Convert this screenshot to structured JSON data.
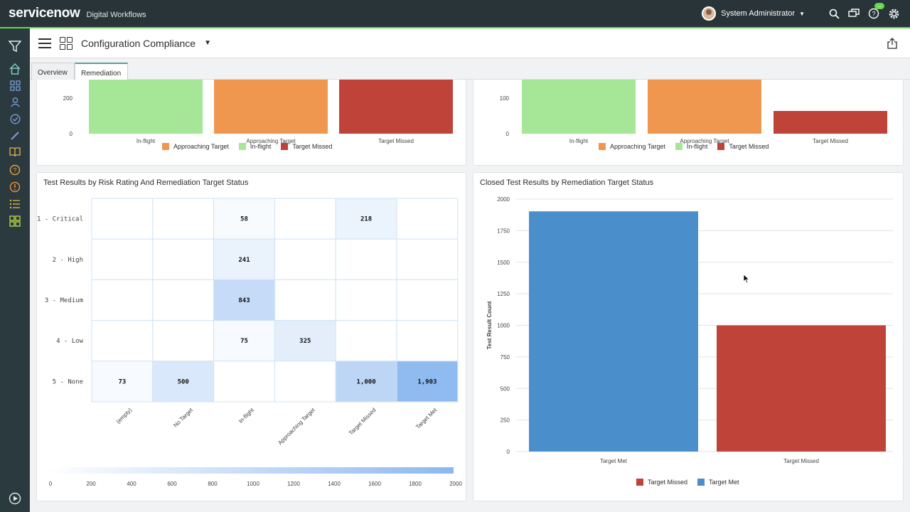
{
  "app": {
    "logo": "servicenow",
    "subtitle": "Digital Workflows",
    "user": "System Administrator",
    "badge": "..."
  },
  "header": {
    "title": "Configuration Compliance"
  },
  "tabs": [
    {
      "label": "Overview"
    },
    {
      "label": "Remediation"
    }
  ],
  "top_left_chart": {
    "y_ticks": [
      "200",
      "0"
    ],
    "categories": [
      "In-flight",
      "Approaching Target",
      "Target Missed"
    ],
    "legend": [
      "Approaching Target",
      "In-flight",
      "Target Missed"
    ]
  },
  "top_right_chart": {
    "y_ticks": [
      "100",
      "0"
    ],
    "categories": [
      "In-flight",
      "Approaching Target",
      "Target Missed"
    ],
    "legend": [
      "Approaching Target",
      "In-flight",
      "Target Missed"
    ]
  },
  "heatmap": {
    "title": "Test Results by Risk Rating And Remediation Target Status",
    "rows": [
      "1 - Critical",
      "2 - High",
      "3 - Medium",
      "4 - Low",
      "5 - None"
    ],
    "cols": [
      "(empty)",
      "No Target",
      "In-flight",
      "Approaching Target",
      "Target Missed",
      "Target Met"
    ],
    "cells": [
      [
        "",
        "",
        "58",
        "",
        "218",
        ""
      ],
      [
        "",
        "",
        "241",
        "",
        "",
        ""
      ],
      [
        "",
        "",
        "843",
        "",
        "",
        ""
      ],
      [
        "",
        "",
        "75",
        "325",
        "",
        ""
      ],
      [
        "73",
        "500",
        "",
        "",
        "1,000",
        "1,903"
      ]
    ],
    "scale": [
      "0",
      "200",
      "400",
      "600",
      "800",
      "1000",
      "1200",
      "1400",
      "1600",
      "1800",
      "2000"
    ]
  },
  "closed_chart": {
    "title": "Closed Test Results by Remediation Target Status",
    "ylabel": "Test Result Count",
    "legend": [
      "Target Missed",
      "Target Met"
    ]
  },
  "colors": {
    "inflight": "#a6e697",
    "approaching": "#f0974f",
    "missed": "#c0433a",
    "met": "#4a8fcb"
  },
  "chart_data": [
    {
      "type": "bar",
      "categories": [
        "In-flight",
        "Approaching Target",
        "Target Missed"
      ],
      "values": [
        218,
        218,
        218
      ],
      "ylim": [
        0,
        218
      ]
    },
    {
      "type": "bar",
      "categories": [
        "In-flight",
        "Approaching Target",
        "Target Missed"
      ],
      "values": [
        100,
        100,
        64
      ],
      "ylim": [
        0,
        100
      ]
    },
    {
      "type": "heatmap",
      "title": "Test Results by Risk Rating And Remediation Target Status",
      "rows": [
        "1 - Critical",
        "2 - High",
        "3 - Medium",
        "4 - Low",
        "5 - None"
      ],
      "cols": [
        "(empty)",
        "No Target",
        "In-flight",
        "Approaching Target",
        "Target Missed",
        "Target Met"
      ],
      "values": [
        [
          null,
          null,
          58,
          null,
          218,
          null
        ],
        [
          null,
          null,
          241,
          null,
          null,
          null
        ],
        [
          null,
          null,
          843,
          null,
          null,
          null
        ],
        [
          null,
          null,
          75,
          325,
          null,
          null
        ],
        [
          73,
          500,
          null,
          null,
          1000,
          1903
        ]
      ],
      "zlim": [
        0,
        2000
      ]
    },
    {
      "type": "bar",
      "title": "Closed Test Results by Remediation Target Status",
      "categories": [
        "Target Met",
        "Target Missed"
      ],
      "values": [
        1903,
        1000
      ],
      "ylabel": "Test Result Count",
      "ylim": [
        0,
        2000
      ],
      "y_ticks": [
        0,
        250,
        500,
        750,
        1000,
        1250,
        1500,
        1750,
        2000
      ],
      "legend": [
        "Target Missed",
        "Target Met"
      ],
      "legend_position": "bottom"
    }
  ]
}
